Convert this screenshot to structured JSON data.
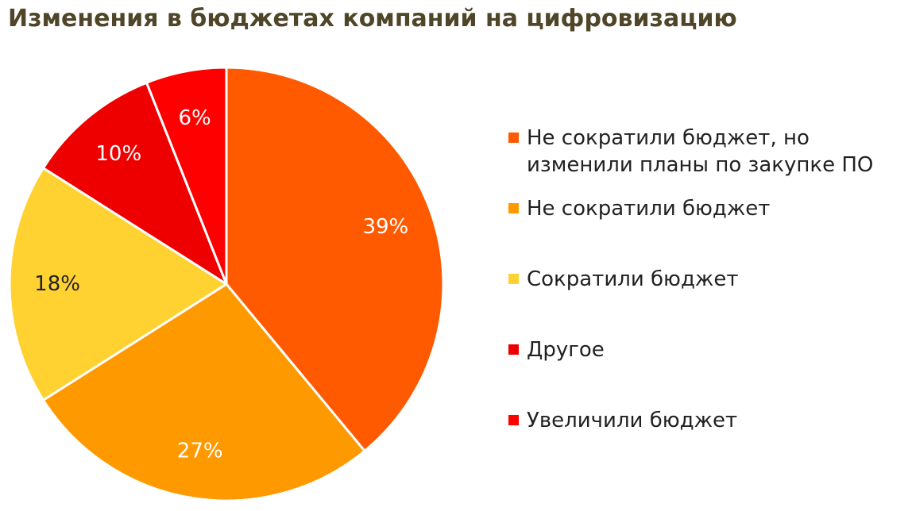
{
  "chart_data": {
    "type": "pie",
    "title": "Изменения в бюджетах компаний на цифровизацию",
    "slices": [
      {
        "name": "Не сократили бюджет, но изменили планы по закупке ПО",
        "value": 39,
        "label": "39%",
        "color": "#ff5a00",
        "label_color": "#ffffff"
      },
      {
        "name": "Не сократили бюджет",
        "value": 27,
        "label": "27%",
        "color": "#ff9900",
        "label_color": "#ffffff"
      },
      {
        "name": "Сократили бюджет",
        "value": 18,
        "label": "18%",
        "color": "#ffd232",
        "label_color": "#222222"
      },
      {
        "name": "Другое",
        "value": 10,
        "label": "10%",
        "color": "#ee0000",
        "label_color": "#ffffff"
      },
      {
        "name": "Увеличили бюджет",
        "value": 6,
        "label": "6%",
        "color": "#ff0000",
        "label_color": "#ffffff"
      }
    ],
    "start": "12 o'clock",
    "direction": "clockwise",
    "legend_position": "right"
  }
}
